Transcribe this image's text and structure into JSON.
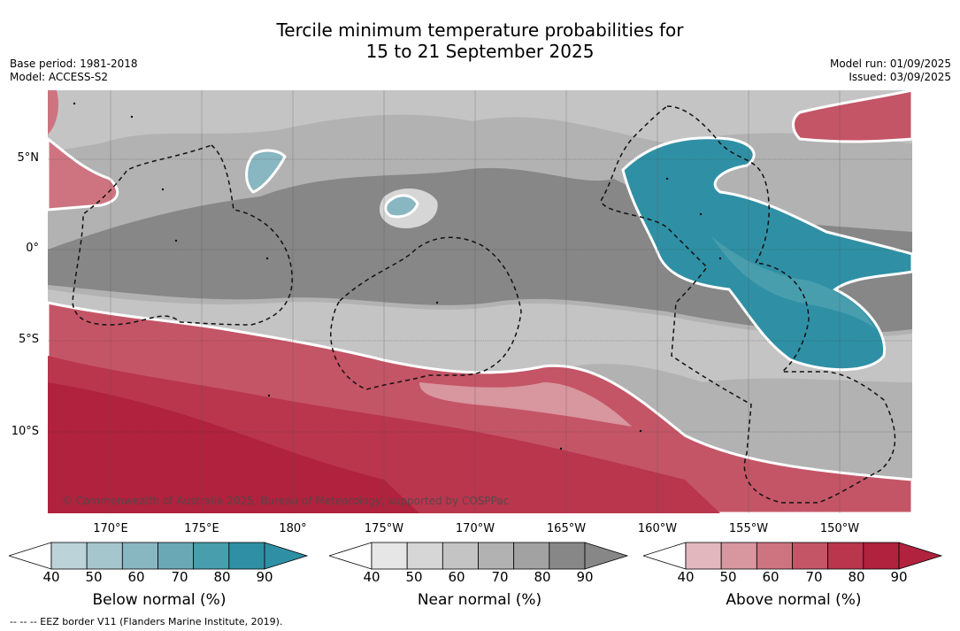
{
  "title_line1": "Tercile minimum temperature probabilities for",
  "title_line2": "15 to 21 September 2025",
  "base_period": "Base period: 1981-2018",
  "model": "Model: ACCESS-S2",
  "model_run": "Model run: 01/09/2025",
  "issued": "Issued: 03/09/2025",
  "lat_labels": [
    "5°N",
    "0°",
    "5°S",
    "10°S"
  ],
  "lon_labels": [
    "170°E",
    "175°E",
    "180°",
    "175°W",
    "170°W",
    "165°W",
    "160°W",
    "155°W",
    "150°W"
  ],
  "copyright": "© Commonwealth of Australia 2025, Bureau of Meteorology, supported by COSPPac",
  "colorbars": [
    {
      "title": "Below normal (%)",
      "ticks": [
        "40",
        "50",
        "60",
        "70",
        "80",
        "90"
      ],
      "colors": [
        "#bcd3da",
        "#a6c6ce",
        "#88b6c1",
        "#6aa8b5",
        "#489ead",
        "#2f90a5"
      ]
    },
    {
      "title": "Near normal (%)",
      "ticks": [
        "40",
        "50",
        "60",
        "70",
        "80",
        "90"
      ],
      "colors": [
        "#e6e6e6",
        "#d6d6d6",
        "#c4c4c4",
        "#b2b2b2",
        "#a2a2a2",
        "#878787"
      ]
    },
    {
      "title": "Above normal (%)",
      "ticks": [
        "40",
        "50",
        "60",
        "70",
        "80",
        "90"
      ],
      "colors": [
        "#e2b7bd",
        "#d8969f",
        "#cd7480",
        "#c45566",
        "#b9364d",
        "#b0223d"
      ]
    }
  ],
  "eez_note": "--  --  -- EEZ border V11 (Flanders Marine Institute, 2019)."
}
